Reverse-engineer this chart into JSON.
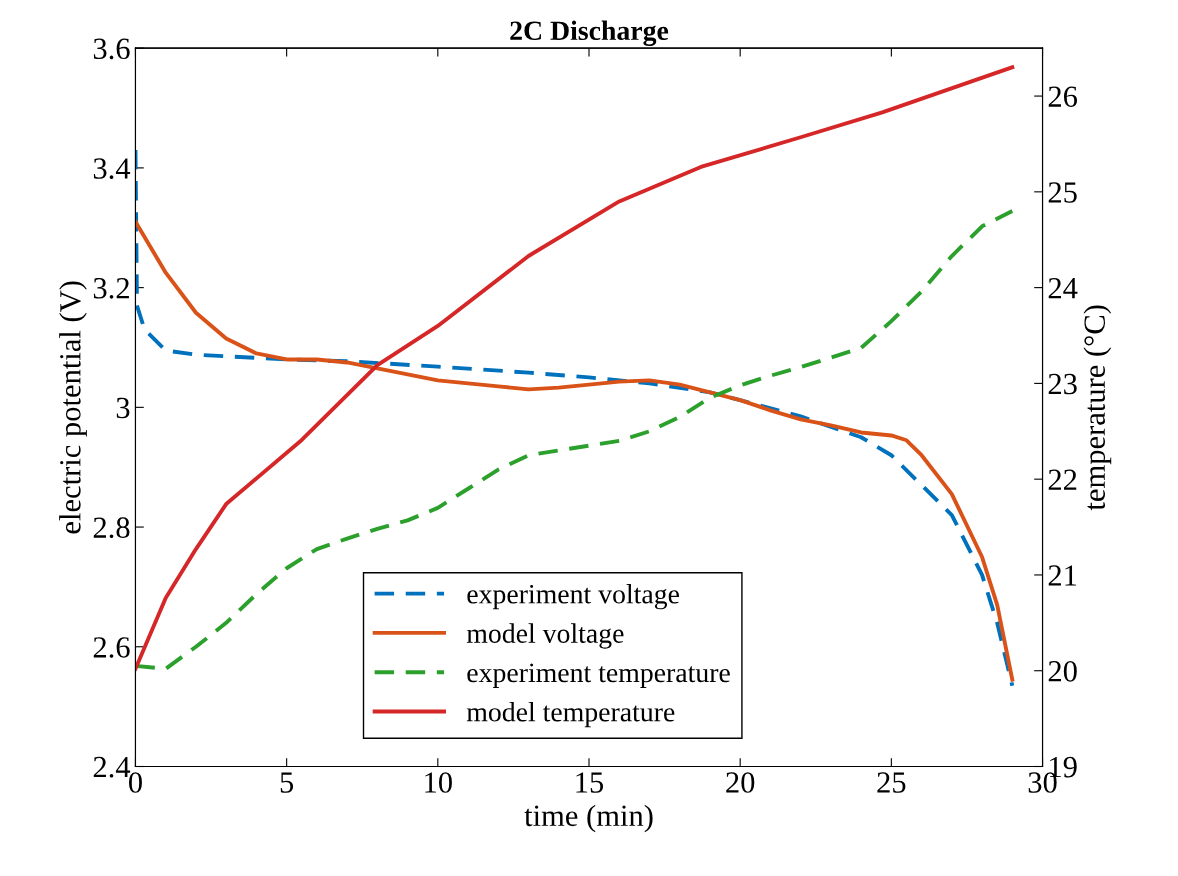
{
  "chart_data": {
    "type": "line",
    "title": "2C Discharge",
    "xlabel": "time (min)",
    "ylabel": "electric potential (V)",
    "y2label": "temperature (°C)",
    "xlim": [
      0,
      30
    ],
    "xticks": [
      0,
      5,
      10,
      15,
      20,
      25,
      30
    ],
    "ylim": [
      2.4,
      3.6
    ],
    "yticks": [
      2.4,
      2.6,
      2.8,
      3,
      3.2,
      3.4,
      3.6
    ],
    "y2lim": [
      19,
      26.5
    ],
    "y2ticks": [
      19,
      20,
      21,
      22,
      23,
      24,
      25,
      26
    ],
    "grid": false,
    "legend": "bottom",
    "marker": "none",
    "series": [
      {
        "name": "experiment voltage",
        "color": "#0072bd",
        "line_style": "dashed",
        "x": [
          0,
          0.05,
          0.3,
          1,
          2,
          5,
          7,
          10,
          13,
          15,
          17,
          19,
          20,
          22,
          24,
          25,
          26,
          27,
          28,
          28.5,
          29
        ],
        "values": [
          3.43,
          3.17,
          3.13,
          3.095,
          3.088,
          3.08,
          3.077,
          3.068,
          3.058,
          3.05,
          3.04,
          3.025,
          3.012,
          2.985,
          2.95,
          2.92,
          2.87,
          2.82,
          2.72,
          2.64,
          2.535
        ]
      },
      {
        "name": "model voltage",
        "color": "#d95319",
        "line_style": "solid",
        "x": [
          0,
          1,
          2,
          3,
          4,
          5,
          6,
          7,
          8,
          10,
          12,
          13,
          14,
          16,
          17,
          18,
          19,
          20,
          21,
          22,
          23,
          24,
          25,
          25.5,
          26,
          27,
          28,
          28.5,
          29
        ],
        "values": [
          3.31,
          3.225,
          3.158,
          3.115,
          3.09,
          3.08,
          3.08,
          3.075,
          3.065,
          3.045,
          3.035,
          3.03,
          3.033,
          3.043,
          3.045,
          3.038,
          3.025,
          3.012,
          2.995,
          2.98,
          2.97,
          2.958,
          2.953,
          2.945,
          2.92,
          2.855,
          2.75,
          2.67,
          2.545
        ]
      },
      {
        "name": "experiment temperature",
        "color": "#2ca02c",
        "line_style": "dashed",
        "axis": "y2",
        "x": [
          0,
          1,
          2,
          3,
          4,
          5,
          6,
          7,
          8,
          9,
          10,
          11,
          12,
          13,
          14,
          15,
          16,
          17,
          18,
          19,
          20,
          21,
          22,
          23,
          24,
          25,
          26,
          27,
          28,
          29
        ],
        "values": [
          20.05,
          20.02,
          20.25,
          20.5,
          20.8,
          21.07,
          21.27,
          21.38,
          21.48,
          21.57,
          21.7,
          21.9,
          22.1,
          22.25,
          22.3,
          22.35,
          22.4,
          22.5,
          22.65,
          22.85,
          22.98,
          23.08,
          23.17,
          23.27,
          23.37,
          23.65,
          23.96,
          24.33,
          24.64,
          24.8
        ]
      },
      {
        "name": "model temperature",
        "color": "#d62728",
        "line_style": "solid",
        "axis": "y2",
        "x": [
          0,
          1,
          2,
          3,
          5.5,
          8,
          10,
          13,
          16,
          18.7,
          22,
          24.7,
          29
        ],
        "values": [
          20.02,
          20.76,
          21.27,
          21.74,
          22.41,
          23.19,
          23.6,
          24.33,
          24.9,
          25.26,
          25.57,
          25.83,
          26.3
        ]
      }
    ]
  }
}
